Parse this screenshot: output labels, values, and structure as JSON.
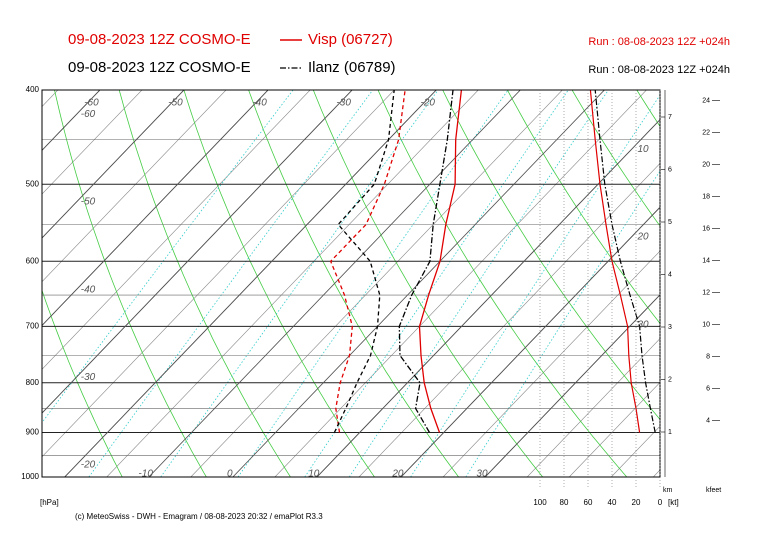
{
  "chart_data": {
    "type": "emagram",
    "model": "09-08-2023 12Z COSMO-E",
    "pressure": [
      900,
      850,
      800,
      750,
      700,
      650,
      600,
      550,
      500,
      450,
      400
    ],
    "series": [
      {
        "name": "Visp (06727)",
        "color": "#e00000",
        "model": "09-08-2023 12Z COSMO-E",
        "run": "Run : 08-08-2023 12Z +024h",
        "temperature": [
          19.5,
          15.7,
          12,
          8.5,
          5,
          2.5,
          0,
          -3.5,
          -7,
          -12,
          -17
        ],
        "dewpoint": [
          7.6,
          4.4,
          2,
          0,
          -3,
          -7.5,
          -13,
          -13,
          -15.4,
          -18.8,
          -23.7
        ],
        "wind_speed": [
          17,
          20,
          24,
          26,
          27,
          33,
          40,
          45,
          50,
          54,
          58
        ]
      },
      {
        "name": "Ilanz (06789)",
        "color": "#000000",
        "model": "09-08-2023 12Z COSMO-E",
        "run": "Run : 08-08-2023 12Z +024h",
        "temperature": [
          18.3,
          13.9,
          11.5,
          6,
          2.6,
          0.5,
          -1.2,
          -5,
          -8.8,
          -13,
          -18
        ],
        "dewpoint": [
          7,
          5.6,
          4,
          2.5,
          0,
          -3.3,
          -8.3,
          -16.3,
          -16.6,
          -20,
          -25
        ],
        "wind_speed": [
          4,
          8,
          12,
          15,
          17,
          25,
          33,
          40,
          46,
          50,
          54
        ]
      }
    ],
    "ylim": [
      1000,
      400
    ],
    "yticks": [
      400,
      500,
      600,
      700,
      800,
      900,
      1000
    ],
    "y_label": "[hPa]",
    "log_y": true,
    "xlim": [
      -22.7,
      50.8
    ],
    "xticks": [
      -10,
      0,
      10,
      20,
      30
    ],
    "xticks_top": [
      -60,
      -50,
      -40,
      -30,
      -20
    ],
    "xticks_left": [
      -60,
      -50,
      -40,
      -30,
      -20
    ],
    "xticks_right": [
      10,
      20,
      30
    ],
    "wind_lim": [
      100,
      0
    ],
    "wind_ticks": [
      100,
      80,
      60,
      40,
      20,
      0
    ],
    "wind_label": "[kt]",
    "km_label": "km",
    "km_ticks": [
      1,
      2,
      3,
      4,
      5,
      6,
      7
    ],
    "kfeet_label": "kfeet",
    "kfeet_ticks": [
      4,
      6,
      8,
      10,
      12,
      14,
      16,
      18,
      20,
      22,
      24
    ],
    "footer": "(c) MeteoSwiss - DWH - Emagram / 08-08-2023 20:32 / emaPlot R3.3"
  }
}
